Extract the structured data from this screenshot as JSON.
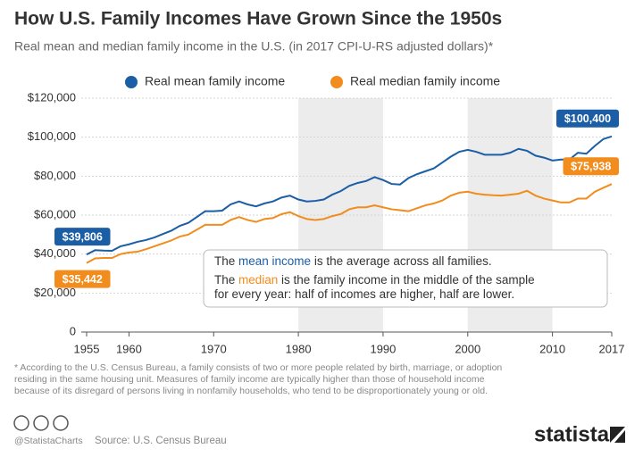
{
  "chart_data": {
    "type": "line",
    "title": "How U.S. Family Incomes Have Grown Since the 1950s",
    "subtitle": "Real mean and median family income in the U.S. (in 2017 CPI-U-RS adjusted dollars)*",
    "x": [
      1955,
      1956,
      1957,
      1958,
      1959,
      1960,
      1961,
      1962,
      1963,
      1964,
      1965,
      1966,
      1967,
      1968,
      1969,
      1970,
      1971,
      1972,
      1973,
      1974,
      1975,
      1976,
      1977,
      1978,
      1979,
      1980,
      1981,
      1982,
      1983,
      1984,
      1985,
      1986,
      1987,
      1988,
      1989,
      1990,
      1991,
      1992,
      1993,
      1994,
      1995,
      1996,
      1997,
      1998,
      1999,
      2000,
      2001,
      2002,
      2003,
      2004,
      2005,
      2006,
      2007,
      2008,
      2009,
      2010,
      2011,
      2012,
      2013,
      2014,
      2015,
      2016,
      2017
    ],
    "series": [
      {
        "name": "Real mean family income",
        "color": "#1b5ea6",
        "values": [
          39806,
          42000,
          41800,
          41700,
          44000,
          45000,
          46300,
          47200,
          48500,
          50300,
          52000,
          54500,
          56000,
          59000,
          62000,
          62000,
          62300,
          65500,
          67000,
          65500,
          64500,
          66000,
          67000,
          69000,
          70000,
          68000,
          67000,
          67300,
          68000,
          70500,
          72300,
          75000,
          76500,
          77500,
          79500,
          78000,
          76000,
          75700,
          79000,
          81000,
          82500,
          84000,
          87000,
          90000,
          92500,
          93500,
          92500,
          91000,
          91000,
          91000,
          92000,
          94000,
          93000,
          90500,
          89500,
          88000,
          88500,
          88500,
          92000,
          91500,
          95500,
          99000,
          100400
        ],
        "value_labels": [
          "$39,806",
          null,
          null,
          null,
          null,
          null,
          null,
          null,
          null,
          null,
          null,
          null,
          null,
          null,
          null,
          null,
          null,
          null,
          null,
          null,
          null,
          null,
          null,
          null,
          null,
          null,
          null,
          null,
          null,
          null,
          null,
          null,
          null,
          null,
          null,
          null,
          null,
          null,
          null,
          null,
          null,
          null,
          null,
          null,
          null,
          null,
          null,
          null,
          null,
          null,
          null,
          null,
          null,
          null,
          null,
          null,
          null,
          null,
          null,
          null,
          null,
          null,
          "$100,400"
        ]
      },
      {
        "name": "Real median family income",
        "color": "#f28c1c",
        "values": [
          35442,
          37800,
          38000,
          38000,
          40000,
          40800,
          41200,
          42500,
          44000,
          45500,
          47000,
          49000,
          50000,
          52500,
          55000,
          55000,
          55000,
          57500,
          59000,
          57500,
          56500,
          58000,
          58500,
          60500,
          61500,
          59500,
          58000,
          57500,
          58000,
          59500,
          60500,
          63000,
          64000,
          64000,
          65000,
          64000,
          63000,
          62500,
          62000,
          63500,
          65000,
          66000,
          67500,
          70000,
          71500,
          72000,
          71000,
          70500,
          70200,
          70000,
          70500,
          71000,
          72500,
          70000,
          68500,
          67500,
          66500,
          66500,
          68500,
          68500,
          72000,
          74000,
          75938
        ],
        "value_labels": [
          "$35,442",
          null,
          null,
          null,
          null,
          null,
          null,
          null,
          null,
          null,
          null,
          null,
          null,
          null,
          null,
          null,
          null,
          null,
          null,
          null,
          null,
          null,
          null,
          null,
          null,
          null,
          null,
          null,
          null,
          null,
          null,
          null,
          null,
          null,
          null,
          null,
          null,
          null,
          null,
          null,
          null,
          null,
          null,
          null,
          null,
          null,
          null,
          null,
          null,
          null,
          null,
          null,
          null,
          null,
          null,
          null,
          null,
          null,
          null,
          null,
          null,
          null,
          "$75,938"
        ]
      }
    ],
    "xlim": [
      1955,
      2017
    ],
    "xticks": [
      1955,
      1960,
      1970,
      1980,
      1990,
      2000,
      2010,
      2017
    ],
    "ylim": [
      0,
      120000
    ],
    "yticks": [
      0,
      {
        "value": 20000,
        "label": "$20,000"
      },
      {
        "value": 40000,
        "label": "$40,000"
      },
      {
        "value": 60000,
        "label": "$60,000"
      },
      {
        "value": 80000,
        "label": "$80,000"
      },
      {
        "value": 100000,
        "label": "$100,000"
      },
      {
        "value": 120000,
        "label": "$120,000"
      }
    ],
    "annotation_lines": [
      [
        "The ",
        "mean income",
        " is the average across all families."
      ],
      [
        "The ",
        "median",
        " is the family income in the middle of the sample"
      ],
      [
        "for every year: half of incomes are higher, half are lower."
      ]
    ],
    "note_lines": [
      "* According to the U.S. Census Bureau, a family consists of two or more people related by birth, marriage, or adoption",
      "residing in the same housing unit. Measures of family income are typically higher than those of household income",
      "because of its disregard of persons living in nonfamily households, who tend to be disproportionately young or old."
    ],
    "credit": "@StatistaCharts",
    "source": "Source: U.S. Census Bureau",
    "brand": "statista"
  }
}
